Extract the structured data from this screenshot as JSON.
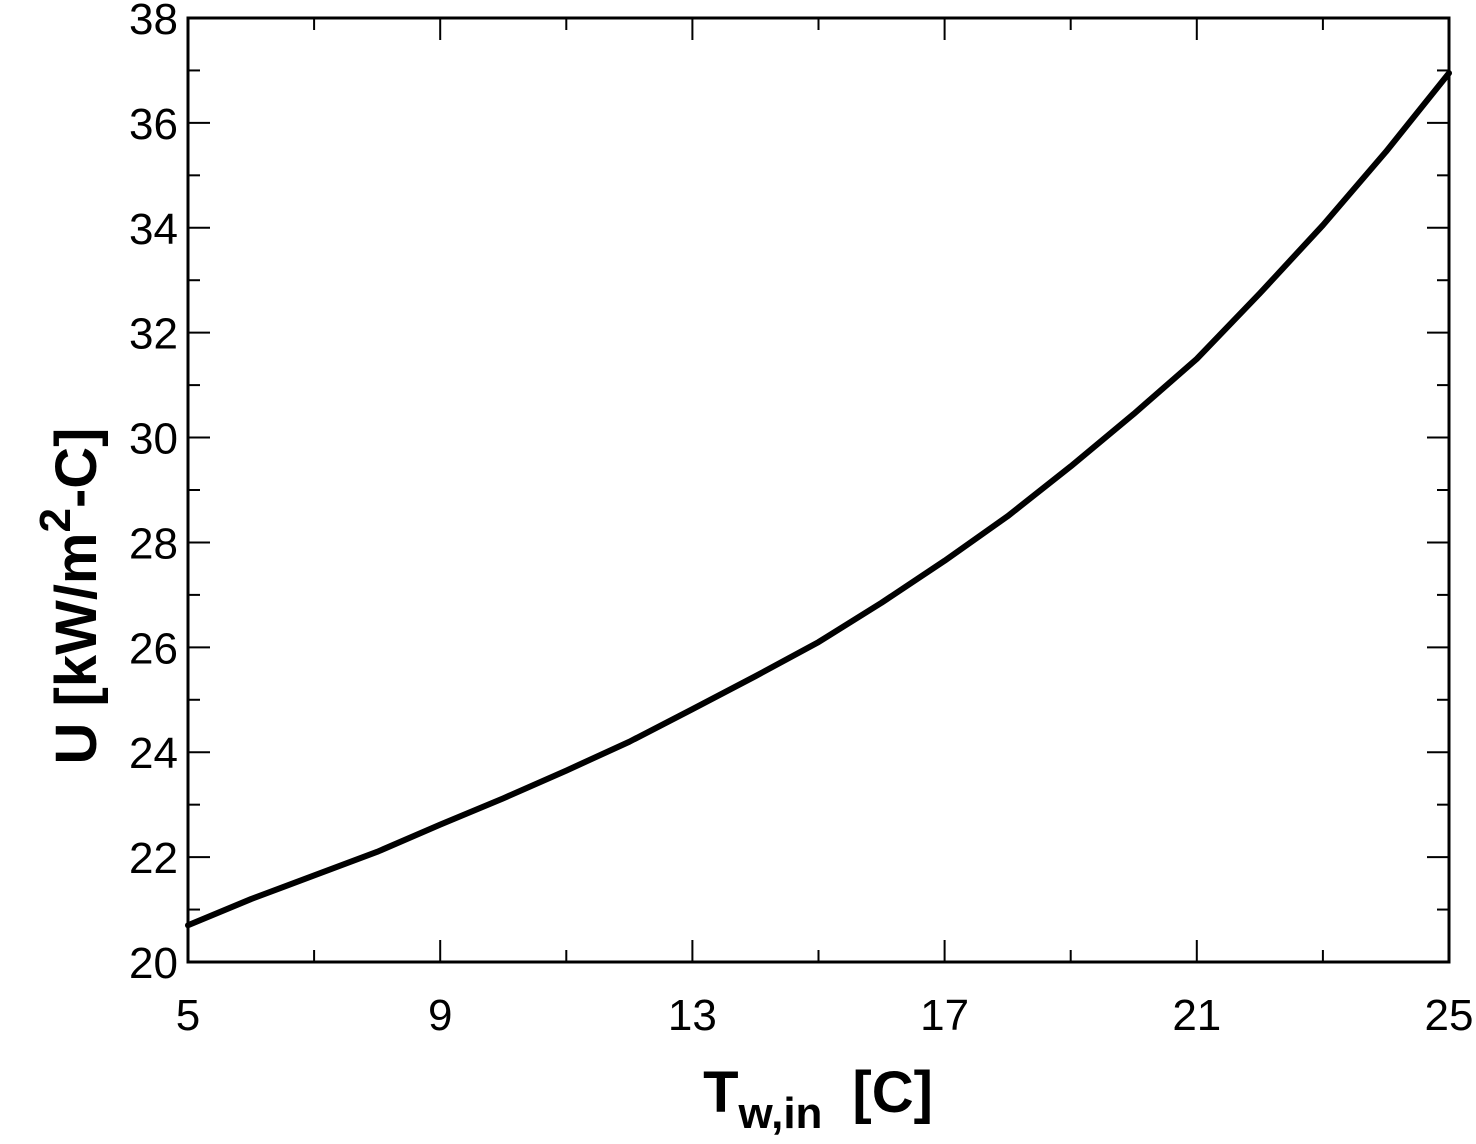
{
  "chart_data": {
    "type": "line",
    "xlabel": {
      "main": "T",
      "sub": "w,in",
      "unit": "[C]"
    },
    "ylabel": {
      "prefix": "U  [kW/m",
      "sup": "2",
      "suffix": "-C]"
    },
    "xlim": [
      5,
      25
    ],
    "ylim": [
      20,
      38
    ],
    "x_ticks": [
      5,
      9,
      13,
      17,
      21,
      25
    ],
    "x_tick_labels": [
      "5",
      "9",
      "13",
      "17",
      "21",
      "25"
    ],
    "x_minor_step": 2,
    "y_ticks": [
      20,
      22,
      24,
      26,
      28,
      30,
      32,
      34,
      36,
      38
    ],
    "y_tick_labels": [
      "20",
      "22",
      "24",
      "26",
      "28",
      "30",
      "32",
      "34",
      "36",
      "38"
    ],
    "y_minor_step": 1,
    "grid": false,
    "series": [
      {
        "color": "#000000",
        "x": [
          5,
          6,
          7,
          8,
          9,
          10,
          11,
          12,
          13,
          14,
          15,
          16,
          17,
          18,
          19,
          20,
          21,
          22,
          23,
          24,
          25
        ],
        "y": [
          20.7,
          21.2,
          21.65,
          22.1,
          22.62,
          23.12,
          23.65,
          24.2,
          24.82,
          25.45,
          26.1,
          26.85,
          27.65,
          28.5,
          29.45,
          30.45,
          31.5,
          32.75,
          34.05,
          35.45,
          36.95
        ]
      }
    ]
  }
}
